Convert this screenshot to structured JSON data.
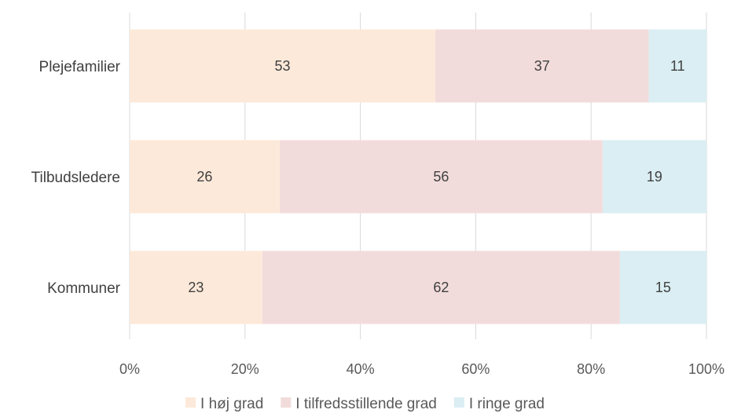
{
  "chart_data": {
    "type": "bar",
    "orientation": "horizontal",
    "stacked": true,
    "categories": [
      "Plejefamilier",
      "Tilbudsledere",
      "Kommuner"
    ],
    "series": [
      {
        "name": "I høj grad",
        "values": [
          53,
          26,
          23
        ],
        "color": "#fde9d9"
      },
      {
        "name": "I tilfredsstillende grad",
        "values": [
          37,
          56,
          62
        ],
        "color": "#f2dcdb"
      },
      {
        "name": "I ringe grad",
        "values": [
          11,
          19,
          15
        ],
        "color": "#daeef3"
      }
    ],
    "xlim": [
      0,
      100
    ],
    "xticks": [
      0,
      20,
      40,
      60,
      80,
      100
    ],
    "xtick_labels": [
      "0%",
      "20%",
      "40%",
      "60%",
      "80%",
      "100%"
    ],
    "grid": true,
    "legend_position": "bottom"
  }
}
